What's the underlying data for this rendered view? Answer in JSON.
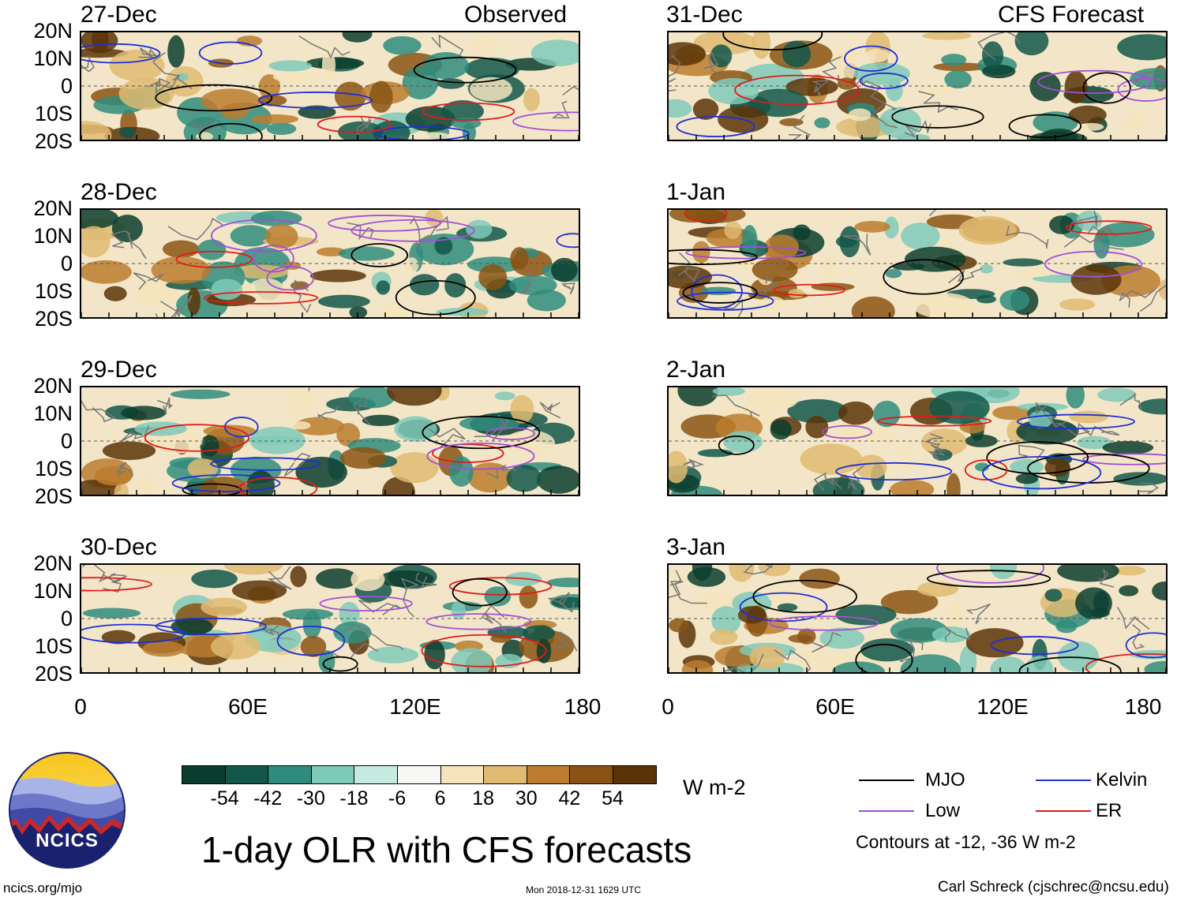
{
  "header": {
    "left_label": "Observed",
    "right_label": "CFS Forecast"
  },
  "panels": {
    "observed": [
      {
        "date": "27-Dec"
      },
      {
        "date": "28-Dec"
      },
      {
        "date": "29-Dec"
      },
      {
        "date": "30-Dec"
      }
    ],
    "forecast": [
      {
        "date": "31-Dec"
      },
      {
        "date": "1-Jan"
      },
      {
        "date": "2-Jan"
      },
      {
        "date": "3-Jan"
      }
    ]
  },
  "axes": {
    "lat_labels": [
      "20N",
      "10N",
      "0",
      "10S",
      "20S"
    ],
    "lon_labels": [
      "0",
      "60E",
      "120E",
      "180"
    ]
  },
  "colorbar": {
    "labels": [
      "-54",
      "-42",
      "-30",
      "-18",
      "-6",
      "6",
      "18",
      "30",
      "42",
      "54"
    ],
    "units": "W m-2",
    "colors": [
      "#0b3d2e",
      "#12574a",
      "#2f8c7c",
      "#7fc9b8",
      "#c6eae0",
      "#f7f7f5",
      "#f5e4bd",
      "#dfba72",
      "#bb7c2f",
      "#8a5313",
      "#5a3408"
    ]
  },
  "legend": {
    "items": [
      {
        "label": "MJO",
        "color": "#000000"
      },
      {
        "label": "Kelvin",
        "color": "#1f2fd6"
      },
      {
        "label": "Low",
        "color": "#a24fd6"
      },
      {
        "label": "ER",
        "color": "#e21b1b"
      }
    ],
    "note": "Contours at -12, -36 W m-2"
  },
  "title": "1-day OLR with CFS forecasts",
  "logo": {
    "text": "NCICS"
  },
  "footer": {
    "left": "ncics.org/mjo",
    "center": "Mon 2018-12-31 1629 UTC",
    "right": "Carl Schreck (cjschrec@ncsu.edu)"
  }
}
